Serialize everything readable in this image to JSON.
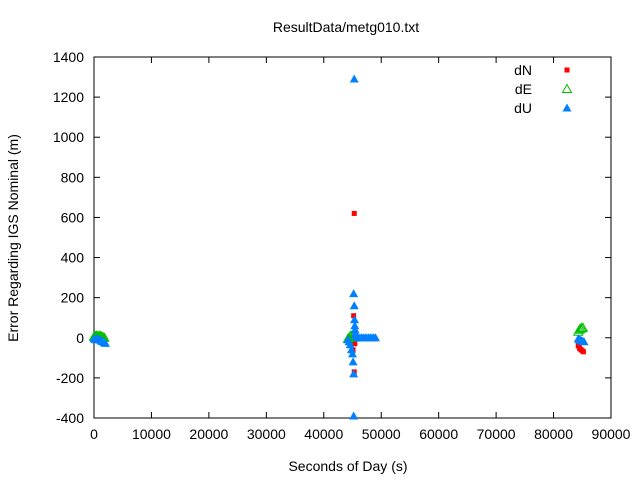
{
  "chart_data": {
    "type": "scatter",
    "title": "ResultData/metg010.txt",
    "xlabel": "Seconds of Day (s)",
    "ylabel": "Error Regarding IGS Nominal (m)",
    "xlim": [
      0,
      90000
    ],
    "ylim": [
      -400,
      1400
    ],
    "x_ticks": [
      0,
      10000,
      20000,
      30000,
      40000,
      50000,
      60000,
      70000,
      80000,
      90000
    ],
    "y_ticks": [
      -400,
      -200,
      0,
      200,
      400,
      600,
      800,
      1000,
      1200,
      1400
    ],
    "x_tick_labels": [
      "0",
      "10000",
      "20000",
      "30000",
      "40000",
      "50000",
      "60000",
      "70000",
      "80000",
      "90000"
    ],
    "y_tick_labels": [
      "-400",
      "-200",
      "0",
      "200",
      "400",
      "600",
      "800",
      "1000",
      "1200",
      "1400"
    ],
    "grid": false,
    "legend_position": "top-right",
    "series": [
      {
        "name": "dN",
        "marker": "filled-square",
        "color": "#ff0000",
        "points": [
          [
            100,
            0
          ],
          [
            300,
            2
          ],
          [
            500,
            -3
          ],
          [
            700,
            5
          ],
          [
            900,
            1
          ],
          [
            1100,
            -2
          ],
          [
            1300,
            0
          ],
          [
            1500,
            -4
          ],
          [
            1700,
            -6
          ],
          [
            1900,
            -8
          ],
          [
            44600,
            0
          ],
          [
            44800,
            -5
          ],
          [
            45000,
            -20
          ],
          [
            45100,
            -60
          ],
          [
            45200,
            110
          ],
          [
            45300,
            620
          ],
          [
            45300,
            -170
          ],
          [
            45400,
            -30
          ],
          [
            45500,
            10
          ],
          [
            45700,
            0
          ],
          [
            46000,
            0
          ],
          [
            46500,
            0
          ],
          [
            47000,
            0
          ],
          [
            47500,
            0
          ],
          [
            48000,
            0
          ],
          [
            48500,
            0
          ],
          [
            84300,
            -40
          ],
          [
            84500,
            -50
          ],
          [
            84600,
            -55
          ],
          [
            84800,
            -60
          ],
          [
            85000,
            -65
          ],
          [
            85200,
            -70
          ]
        ]
      },
      {
        "name": "dE",
        "marker": "open-triangle",
        "color": "#00c000",
        "points": [
          [
            0,
            5
          ],
          [
            200,
            8
          ],
          [
            400,
            10
          ],
          [
            600,
            8
          ],
          [
            800,
            6
          ],
          [
            1000,
            10
          ],
          [
            1200,
            8
          ],
          [
            1400,
            5
          ],
          [
            1600,
            2
          ],
          [
            1800,
            0
          ],
          [
            44200,
            -5
          ],
          [
            44400,
            0
          ],
          [
            44600,
            8
          ],
          [
            44800,
            10
          ],
          [
            45000,
            5
          ],
          [
            45200,
            0
          ],
          [
            45500,
            5
          ],
          [
            84300,
            30
          ],
          [
            84500,
            40
          ],
          [
            84700,
            45
          ],
          [
            84900,
            48
          ],
          [
            85100,
            50
          ]
        ]
      },
      {
        "name": "dU",
        "marker": "filled-triangle",
        "color": "#0080ff",
        "points": [
          [
            0,
            -5
          ],
          [
            200,
            -8
          ],
          [
            400,
            -10
          ],
          [
            600,
            -5
          ],
          [
            800,
            -8
          ],
          [
            1000,
            -10
          ],
          [
            1200,
            -15
          ],
          [
            1400,
            -18
          ],
          [
            1600,
            -20
          ],
          [
            1800,
            -25
          ],
          [
            2000,
            -28
          ],
          [
            44200,
            -10
          ],
          [
            44400,
            -20
          ],
          [
            44600,
            -35
          ],
          [
            44800,
            -60
          ],
          [
            45000,
            -80
          ],
          [
            45100,
            -120
          ],
          [
            45200,
            220
          ],
          [
            45300,
            160
          ],
          [
            45200,
            -180
          ],
          [
            45200,
            -390
          ],
          [
            45300,
            1290
          ],
          [
            45350,
            90
          ],
          [
            45400,
            60
          ],
          [
            45450,
            40
          ],
          [
            45500,
            20
          ],
          [
            45600,
            10
          ],
          [
            45800,
            5
          ],
          [
            46000,
            0
          ],
          [
            46300,
            0
          ],
          [
            46600,
            0
          ],
          [
            46900,
            0
          ],
          [
            47200,
            0
          ],
          [
            47500,
            0
          ],
          [
            47800,
            0
          ],
          [
            48100,
            0
          ],
          [
            48400,
            0
          ],
          [
            48700,
            0
          ],
          [
            49000,
            0
          ],
          [
            84300,
            -5
          ],
          [
            84500,
            -10
          ],
          [
            84700,
            -12
          ],
          [
            84900,
            -15
          ],
          [
            85100,
            -18
          ],
          [
            85300,
            -20
          ]
        ]
      }
    ]
  }
}
